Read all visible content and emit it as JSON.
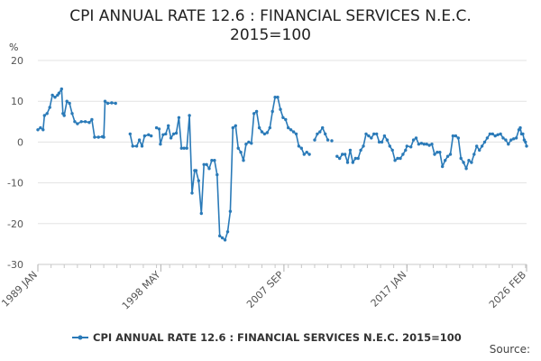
{
  "chart_data": {
    "type": "line",
    "title_line1": "CPI ANNUAL RATE 12.6 : FINANCIAL SERVICES N.E.C.",
    "title_line2": "2015=100",
    "ylabel": "%",
    "ylim": [
      -30,
      20
    ],
    "yticks": [
      20,
      10,
      0,
      -10,
      -20,
      -30
    ],
    "xlim": [
      1989.0,
      2026.08
    ],
    "xticks": [
      {
        "label": "1989 JAN",
        "x": 1989.0
      },
      {
        "label": "1998 MAY",
        "x": 1998.33
      },
      {
        "label": "2007 SEP",
        "x": 2007.67
      },
      {
        "label": "2017 JAN",
        "x": 2017.0
      },
      {
        "label": "2026 FEB",
        "x": 2026.08
      }
    ],
    "grid": true,
    "legend_position": "bottom",
    "series": [
      {
        "name": "CPI ANNUAL RATE 12.6 : FINANCIAL SERVICES N.E.C. 2015=100",
        "color": "#2a7ab8",
        "segments": [
          [
            [
              1989.0,
              3
            ],
            [
              1989.2,
              3.5
            ],
            [
              1989.4,
              3
            ],
            [
              1989.5,
              6.5
            ],
            [
              1989.7,
              7
            ],
            [
              1989.9,
              8.5
            ],
            [
              1990.1,
              11.5
            ],
            [
              1990.3,
              11
            ],
            [
              1990.5,
              11.5
            ],
            [
              1990.6,
              12
            ],
            [
              1990.8,
              13
            ],
            [
              1990.9,
              7
            ],
            [
              1991.0,
              6.5
            ],
            [
              1991.2,
              10
            ],
            [
              1991.4,
              9.5
            ],
            [
              1991.6,
              7
            ],
            [
              1991.8,
              5
            ],
            [
              1992.0,
              4.5
            ],
            [
              1992.3,
              5
            ],
            [
              1992.6,
              5
            ],
            [
              1992.9,
              4.8
            ],
            [
              1993.1,
              5.5
            ],
            [
              1993.3,
              1.2
            ],
            [
              1993.6,
              1.2
            ],
            [
              1993.9,
              1.3
            ],
            [
              1994.0,
              1.2
            ],
            [
              1994.1,
              10
            ],
            [
              1994.3,
              9.5
            ],
            [
              1994.6,
              9.6
            ],
            [
              1994.9,
              9.5
            ]
          ],
          [
            [
              1996.0,
              2
            ],
            [
              1996.2,
              -1
            ],
            [
              1996.5,
              -1
            ],
            [
              1996.7,
              0.5
            ],
            [
              1996.9,
              -1
            ],
            [
              1997.1,
              1.5
            ],
            [
              1997.4,
              1.8
            ],
            [
              1997.6,
              1.5
            ]
          ],
          [
            [
              1998.0,
              3.5
            ],
            [
              1998.2,
              3.2
            ],
            [
              1998.3,
              -0.5
            ],
            [
              1998.5,
              1.8
            ],
            [
              1998.7,
              2
            ],
            [
              1998.9,
              4
            ],
            [
              1999.1,
              1
            ],
            [
              1999.3,
              2
            ],
            [
              1999.5,
              2.2
            ],
            [
              1999.7,
              6
            ],
            [
              1999.9,
              -1.5
            ],
            [
              2000.1,
              -1.5
            ],
            [
              2000.3,
              -1.5
            ],
            [
              2000.5,
              6.5
            ],
            [
              2000.7,
              -12.5
            ],
            [
              2000.9,
              -7
            ],
            [
              2001.0,
              -7
            ],
            [
              2001.2,
              -9.5
            ],
            [
              2001.4,
              -17.5
            ],
            [
              2001.6,
              -5.5
            ],
            [
              2001.8,
              -5.5
            ],
            [
              2002.0,
              -6.5
            ],
            [
              2002.2,
              -4.5
            ],
            [
              2002.4,
              -4.5
            ],
            [
              2002.6,
              -8
            ],
            [
              2002.8,
              -23
            ],
            [
              2003.0,
              -23.5
            ],
            [
              2003.2,
              -24
            ],
            [
              2003.4,
              -22
            ],
            [
              2003.6,
              -17
            ],
            [
              2003.8,
              3.5
            ],
            [
              2004.0,
              4
            ],
            [
              2004.2,
              -1.5
            ],
            [
              2004.4,
              -2.5
            ],
            [
              2004.6,
              -4.5
            ],
            [
              2004.8,
              -0.5
            ],
            [
              2005.0,
              0
            ],
            [
              2005.2,
              -0.3
            ],
            [
              2005.4,
              7
            ],
            [
              2005.6,
              7.5
            ],
            [
              2005.8,
              3.5
            ],
            [
              2006.0,
              2.5
            ],
            [
              2006.2,
              2
            ],
            [
              2006.4,
              2.3
            ],
            [
              2006.6,
              3.5
            ],
            [
              2006.8,
              7.5
            ],
            [
              2007.0,
              11
            ],
            [
              2007.2,
              11
            ],
            [
              2007.4,
              8
            ],
            [
              2007.6,
              6
            ],
            [
              2007.8,
              5.5
            ],
            [
              2008.0,
              3.5
            ],
            [
              2008.2,
              3
            ],
            [
              2008.4,
              2.5
            ],
            [
              2008.6,
              2
            ],
            [
              2008.8,
              -1
            ],
            [
              2009.0,
              -1.5
            ],
            [
              2009.2,
              -3
            ],
            [
              2009.4,
              -2.5
            ],
            [
              2009.6,
              -3
            ]
          ],
          [
            [
              2010.0,
              0.5
            ],
            [
              2010.2,
              2
            ],
            [
              2010.4,
              2.5
            ],
            [
              2010.6,
              3.5
            ],
            [
              2010.8,
              2
            ],
            [
              2011.0,
              0.5
            ]
          ],
          [
            [
              2011.3,
              0.3
            ]
          ],
          [
            [
              2011.7,
              -3.5
            ],
            [
              2011.9,
              -4
            ],
            [
              2012.1,
              -3
            ],
            [
              2012.3,
              -3
            ],
            [
              2012.5,
              -5
            ],
            [
              2012.7,
              -2
            ],
            [
              2012.9,
              -5
            ],
            [
              2013.1,
              -4
            ],
            [
              2013.3,
              -4
            ],
            [
              2013.5,
              -2
            ],
            [
              2013.7,
              -1
            ],
            [
              2013.9,
              2
            ],
            [
              2014.1,
              1.5
            ],
            [
              2014.3,
              1
            ],
            [
              2014.5,
              2
            ],
            [
              2014.7,
              2
            ],
            [
              2014.9,
              0
            ],
            [
              2015.1,
              0
            ],
            [
              2015.3,
              1.5
            ],
            [
              2015.5,
              0.5
            ],
            [
              2015.7,
              -1
            ],
            [
              2015.9,
              -2
            ],
            [
              2016.1,
              -4.5
            ],
            [
              2016.3,
              -4
            ],
            [
              2016.5,
              -4
            ],
            [
              2016.7,
              -3
            ],
            [
              2016.9,
              -2
            ],
            [
              2017.0,
              -1
            ],
            [
              2017.3,
              -1.2
            ],
            [
              2017.5,
              0.5
            ],
            [
              2017.7,
              1
            ],
            [
              2017.9,
              -0.5
            ],
            [
              2018.1,
              -0.3
            ],
            [
              2018.3,
              -0.5
            ],
            [
              2018.5,
              -0.5
            ],
            [
              2018.7,
              -0.8
            ],
            [
              2018.9,
              -0.5
            ],
            [
              2019.1,
              -3
            ],
            [
              2019.3,
              -2.5
            ],
            [
              2019.5,
              -2.5
            ],
            [
              2019.7,
              -6
            ],
            [
              2019.9,
              -4.5
            ],
            [
              2020.1,
              -3.5
            ],
            [
              2020.3,
              -3
            ],
            [
              2020.5,
              1.5
            ],
            [
              2020.7,
              1.5
            ],
            [
              2020.9,
              1
            ],
            [
              2021.1,
              -4
            ],
            [
              2021.3,
              -5
            ],
            [
              2021.5,
              -6.5
            ],
            [
              2021.7,
              -4.5
            ],
            [
              2021.9,
              -5
            ],
            [
              2022.1,
              -3
            ],
            [
              2022.3,
              -1
            ],
            [
              2022.5,
              -2
            ],
            [
              2022.7,
              -1
            ],
            [
              2022.9,
              0
            ],
            [
              2023.1,
              1
            ],
            [
              2023.3,
              2
            ],
            [
              2023.5,
              2
            ],
            [
              2023.7,
              1.5
            ],
            [
              2023.9,
              1.8
            ],
            [
              2024.1,
              2
            ],
            [
              2024.3,
              1
            ],
            [
              2024.5,
              0.5
            ],
            [
              2024.7,
              -0.5
            ],
            [
              2024.9,
              0.5
            ],
            [
              2025.1,
              0.8
            ],
            [
              2025.3,
              1
            ],
            [
              2025.5,
              3
            ],
            [
              2025.6,
              3.5
            ],
            [
              2025.7,
              2
            ],
            [
              2025.8,
              2
            ],
            [
              2025.9,
              0.5
            ],
            [
              2026.0,
              0
            ],
            [
              2026.08,
              -1
            ]
          ]
        ]
      }
    ]
  },
  "source_label": "Source:"
}
